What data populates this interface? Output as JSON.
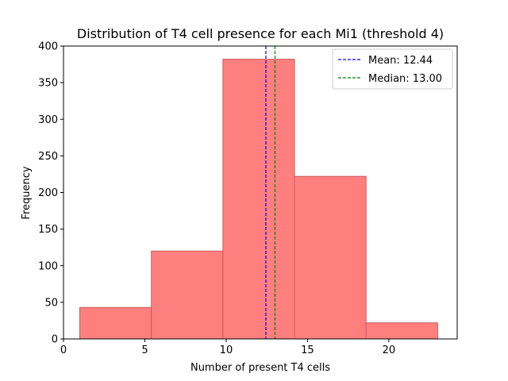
{
  "chart_data": {
    "type": "bar",
    "title": "Distribution of T4 cell presence for each Mi1 (threshold 4)",
    "xlabel": "Number of present T4 cells",
    "ylabel": "Frequency",
    "xlim": [
      0,
      24.2
    ],
    "ylim": [
      0,
      400
    ],
    "xticks": [
      0,
      5,
      10,
      15,
      20
    ],
    "yticks": [
      0,
      50,
      100,
      150,
      200,
      250,
      300,
      350,
      400
    ],
    "bins": [
      {
        "x0": 1.0,
        "x1": 5.4,
        "count": 43
      },
      {
        "x0": 5.4,
        "x1": 9.8,
        "count": 120
      },
      {
        "x0": 9.8,
        "x1": 14.2,
        "count": 382
      },
      {
        "x0": 14.2,
        "x1": 18.6,
        "count": 222
      },
      {
        "x0": 18.6,
        "x1": 23.0,
        "count": 22
      }
    ],
    "bar_color": "#ff7f7f",
    "bar_edge_color": "#cc5c5c",
    "mean": {
      "value": 12.44,
      "label": "Mean: 12.44",
      "color": "#0000ff"
    },
    "median": {
      "value": 13.0,
      "label": "Median: 13.00",
      "color": "#008000"
    },
    "legend_position": "top-right",
    "grid": false
  }
}
